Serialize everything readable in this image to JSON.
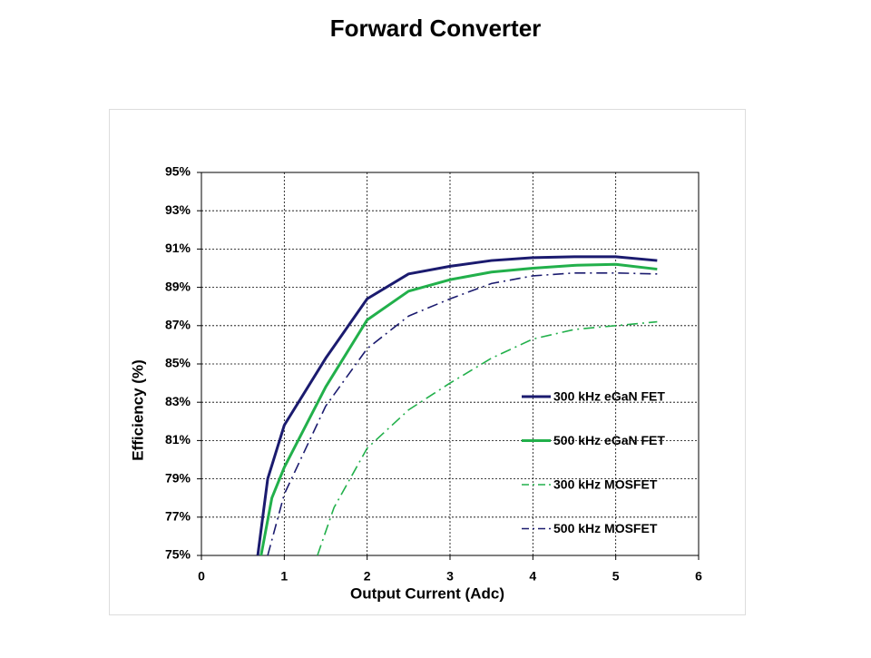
{
  "chart_data": {
    "type": "line",
    "title": "Forward Converter",
    "x_label": "Output Current (Adc)",
    "y_label": "Efficiency (%)",
    "xlim": [
      0,
      6
    ],
    "xticks": [
      0,
      1,
      2,
      3,
      4,
      5,
      6
    ],
    "ylim": [
      75,
      95
    ],
    "yticks": [
      {
        "value": 75,
        "label": "75%"
      },
      {
        "value": 77,
        "label": "77%"
      },
      {
        "value": 79,
        "label": "79%"
      },
      {
        "value": 81,
        "label": "81%"
      },
      {
        "value": 83,
        "label": "83%"
      },
      {
        "value": 85,
        "label": "85%"
      },
      {
        "value": 87,
        "label": "87%"
      },
      {
        "value": 89,
        "label": "89%"
      },
      {
        "value": 91,
        "label": "91%"
      },
      {
        "value": 93,
        "label": "93%"
      },
      {
        "value": 95,
        "label": "95%"
      }
    ],
    "grid": true,
    "legend": "lower right",
    "series": [
      {
        "name": "300 kHz eGaN FET",
        "color": "#1b1b6f",
        "line_style": "solid",
        "x": [
          0.68,
          0.8,
          1,
          1.5,
          2,
          2.5,
          3,
          3.5,
          4,
          4.5,
          5,
          5.5
        ],
        "values": [
          75,
          79,
          81.8,
          85.3,
          88.4,
          89.7,
          90.1,
          90.4,
          90.55,
          90.6,
          90.6,
          90.4
        ]
      },
      {
        "name": "500 kHz eGaN FET",
        "color": "#22b04b",
        "line_style": "solid",
        "x": [
          0.72,
          0.85,
          1,
          1.5,
          2,
          2.5,
          3,
          3.5,
          4,
          4.5,
          5,
          5.5
        ],
        "values": [
          75,
          78,
          79.6,
          83.8,
          87.3,
          88.8,
          89.4,
          89.8,
          90.0,
          90.15,
          90.2,
          89.95
        ]
      },
      {
        "name": "300 kHz MOSFET",
        "color": "#22b04b",
        "line_style": "dashdot",
        "x": [
          1.4,
          1.6,
          2,
          2.5,
          3,
          3.5,
          4,
          4.5,
          5,
          5.5
        ],
        "values": [
          75,
          77.5,
          80.6,
          82.6,
          84.0,
          85.3,
          86.3,
          86.8,
          87.0,
          87.2
        ]
      },
      {
        "name": "500 kHz MOSFET",
        "color": "#1b1b6f",
        "line_style": "dashdot",
        "x": [
          0.8,
          1,
          1.5,
          2,
          2.5,
          3,
          3.5,
          4,
          4.5,
          5,
          5.5
        ],
        "values": [
          75,
          78.2,
          82.8,
          85.8,
          87.5,
          88.4,
          89.2,
          89.6,
          89.75,
          89.75,
          89.7
        ]
      }
    ]
  }
}
